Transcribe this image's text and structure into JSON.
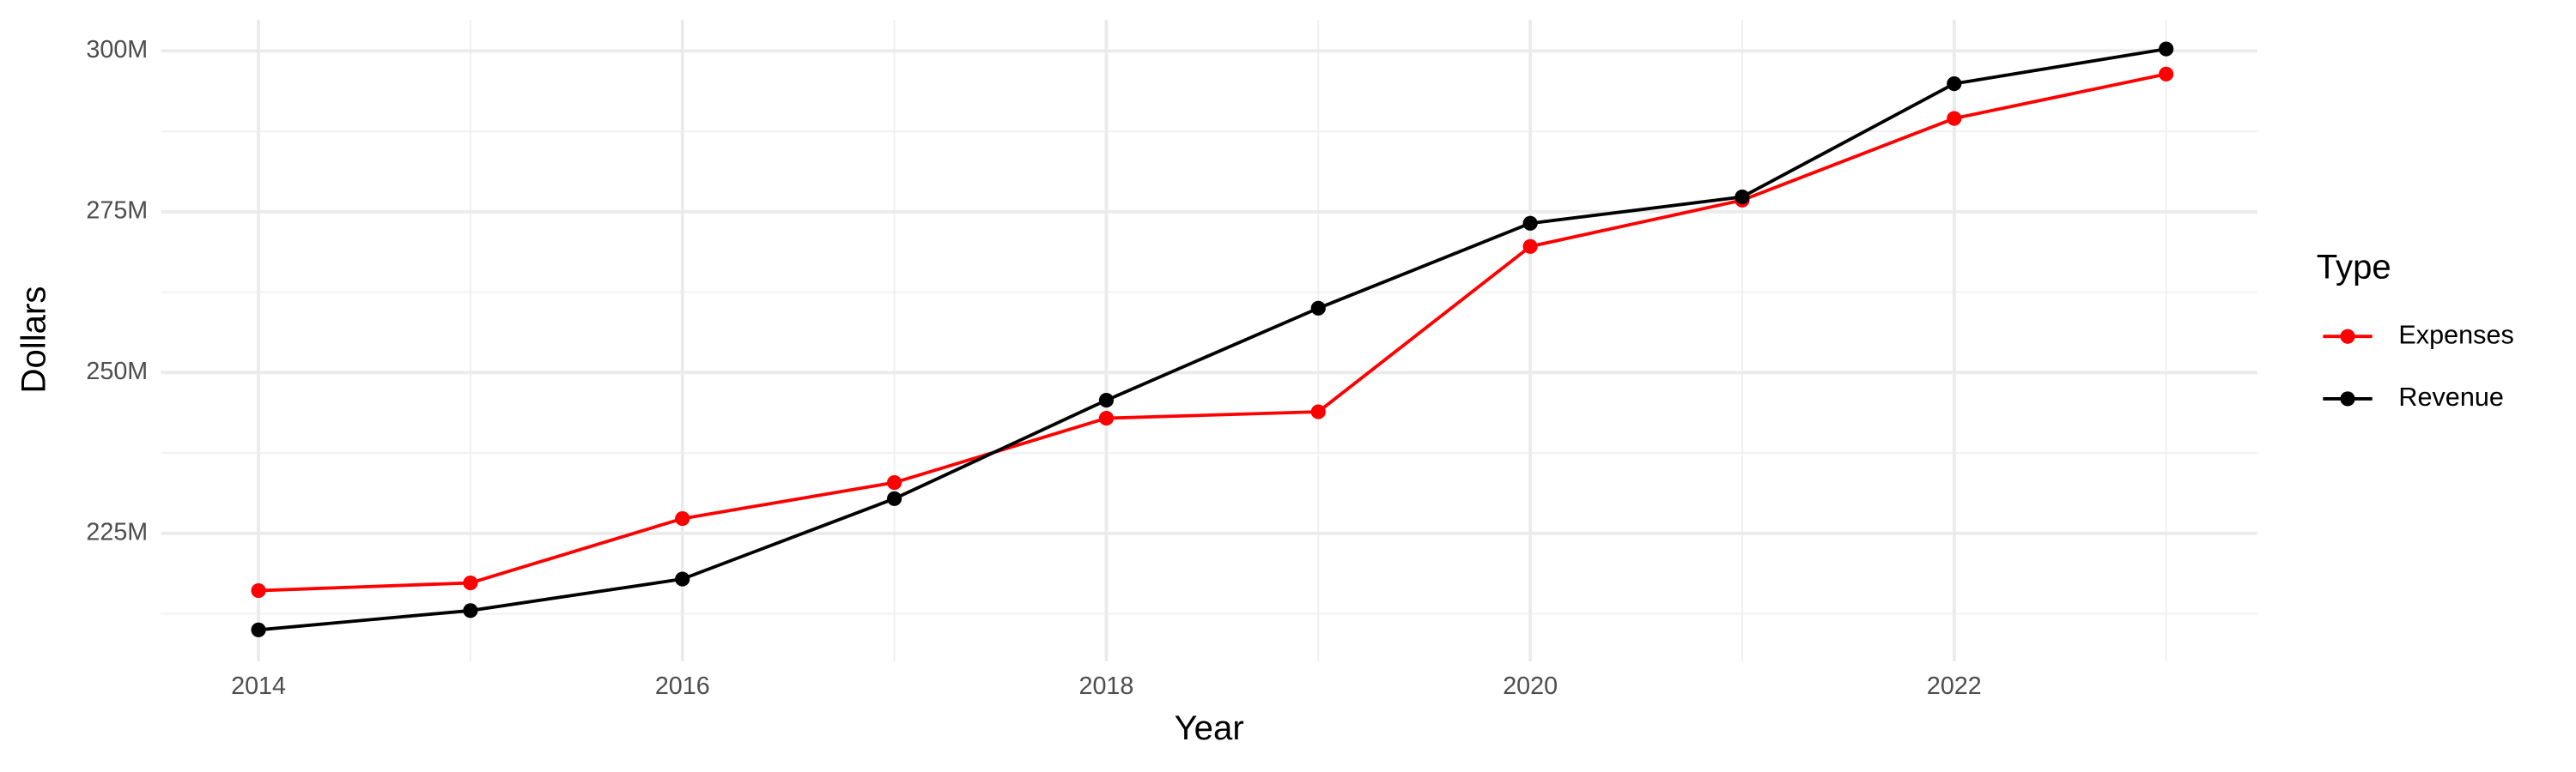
{
  "chart_data": {
    "type": "line",
    "x_label": "Year",
    "y_label": "Dollars",
    "legend_title": "Type",
    "x": [
      2014,
      2015,
      2016,
      2017,
      2018,
      2019,
      2020,
      2021,
      2022,
      2023
    ],
    "series": [
      {
        "name": "Expenses",
        "color": "#ff0000",
        "values": [
          216100000,
          217300000,
          227300000,
          232900000,
          242900000,
          243900000,
          269600000,
          276800000,
          289500000,
          296400000
        ]
      },
      {
        "name": "Revenue",
        "color": "#000000",
        "values": [
          210000000,
          213000000,
          217900000,
          230400000,
          245700000,
          260000000,
          273200000,
          277300000,
          294900000,
          300300000
        ]
      }
    ],
    "xlim": [
      2013.54,
      2023.43
    ],
    "xticks": [
      2014,
      2016,
      2018,
      2020,
      2022
    ],
    "ylim": [
      205100000,
      304850000
    ],
    "yticks": [
      {
        "value": 225000000,
        "label": "225M"
      },
      {
        "value": 250000000,
        "label": "250M"
      },
      {
        "value": 275000000,
        "label": "275M"
      },
      {
        "value": 300000000,
        "label": "300M"
      }
    ],
    "grid": true,
    "legend": "right"
  }
}
